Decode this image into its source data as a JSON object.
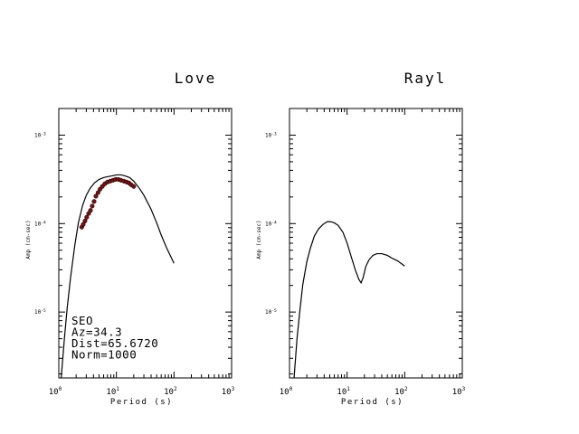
{
  "chart_data": [
    {
      "type": "line",
      "title": "Love",
      "xlabel": "Period (s)",
      "ylabel": "Amp (cm-sec)",
      "xscale": "log",
      "yscale": "log",
      "xlim": [
        1,
        1000
      ],
      "ylim": [
        1.8e-06,
        0.002
      ],
      "xticklabels": [
        {
          "base": "10",
          "exp": "0",
          "value": 1
        },
        {
          "base": "10",
          "exp": "1",
          "value": 10
        },
        {
          "base": "10",
          "exp": "2",
          "value": 100
        },
        {
          "base": "10",
          "exp": "3",
          "value": 1000
        }
      ],
      "yticklabels": [
        {
          "base": "10",
          "exp": "-3",
          "value": 0.001
        },
        {
          "base": "10",
          "exp": "-4",
          "value": 0.0001
        },
        {
          "base": "10",
          "exp": "-5",
          "value": 1e-05
        }
      ],
      "annotations": [
        "SEO",
        "Az=34.3",
        "Dist=65.6720",
        "Norm=1000"
      ],
      "series": [
        {
          "kind": "line",
          "x": [
            1.1,
            1.25,
            1.4,
            1.6,
            1.9,
            2.2,
            2.6,
            3.0,
            3.5,
            4.2,
            5.0,
            6.0,
            7.0,
            8.5,
            10,
            12,
            14,
            17,
            20,
            25,
            30,
            40,
            50,
            60,
            75,
            100
          ],
          "y": [
            1.8e-06,
            5e-06,
            1.12e-05,
            2.46e-05,
            5.75e-05,
            0.000104,
            0.000162,
            0.000209,
            0.000251,
            0.00029,
            0.000316,
            0.000331,
            0.000339,
            0.000347,
            0.000355,
            0.000355,
            0.000347,
            0.000331,
            0.000302,
            0.000251,
            0.000209,
            0.000145,
            0.000102,
            7.41e-05,
            5.25e-05,
            3.55e-05
          ]
        },
        {
          "kind": "scatter",
          "color": "#7a1010",
          "x": [
            2.5,
            2.65,
            2.85,
            3.05,
            3.3,
            3.55,
            3.8,
            4.1,
            4.4,
            4.8,
            5.2,
            5.7,
            6.3,
            7.0,
            7.8,
            8.7,
            9.7,
            10.8,
            12.0,
            13.5,
            15.0,
            16.5,
            18.0,
            20.0
          ],
          "y": [
            9.12e-05,
            9.77e-05,
            0.000107,
            0.000118,
            0.00013,
            0.000141,
            0.000158,
            0.000178,
            0.000204,
            0.000224,
            0.000245,
            0.000263,
            0.000282,
            0.000295,
            0.000302,
            0.000309,
            0.000316,
            0.000316,
            0.000309,
            0.000302,
            0.000295,
            0.000288,
            0.000275,
            0.000263
          ]
        }
      ]
    },
    {
      "type": "line",
      "title": "Rayl",
      "xlabel": "Period (s)",
      "ylabel": "Amp (cm-sec)",
      "xscale": "log",
      "yscale": "log",
      "xlim": [
        1,
        1000
      ],
      "ylim": [
        1.8e-06,
        0.002
      ],
      "xticklabels": [
        {
          "base": "10",
          "exp": "0",
          "value": 1
        },
        {
          "base": "10",
          "exp": "1",
          "value": 10
        },
        {
          "base": "10",
          "exp": "2",
          "value": 100
        },
        {
          "base": "10",
          "exp": "3",
          "value": 1000
        }
      ],
      "yticklabels": [
        {
          "base": "10",
          "exp": "-3",
          "value": 0.001
        },
        {
          "base": "10",
          "exp": "-4",
          "value": 0.0001
        },
        {
          "base": "10",
          "exp": "-5",
          "value": 1e-05
        }
      ],
      "series": [
        {
          "kind": "line",
          "x": [
            1.2,
            1.35,
            1.5,
            1.7,
            2.0,
            2.3,
            2.7,
            3.2,
            3.8,
            4.5,
            5.2,
            6.0,
            7.0,
            8.5,
            10,
            12,
            14,
            16,
            17.5,
            19,
            21,
            24,
            28,
            33,
            40,
            50,
            60,
            75,
            100
          ],
          "y": [
            1.8e-06,
            5e-06,
            9.8e-06,
            2.04e-05,
            3.72e-05,
            5.25e-05,
            7.24e-05,
            8.71e-05,
            9.77e-05,
            0.000105,
            0.000105,
            0.000102,
            9.55e-05,
            7.94e-05,
            6.03e-05,
            4.07e-05,
            2.95e-05,
            2.34e-05,
            2.14e-05,
            2.45e-05,
            3.24e-05,
            3.89e-05,
            4.37e-05,
            4.57e-05,
            4.57e-05,
            4.37e-05,
            4.07e-05,
            3.8e-05,
            3.31e-05
          ]
        }
      ]
    }
  ]
}
